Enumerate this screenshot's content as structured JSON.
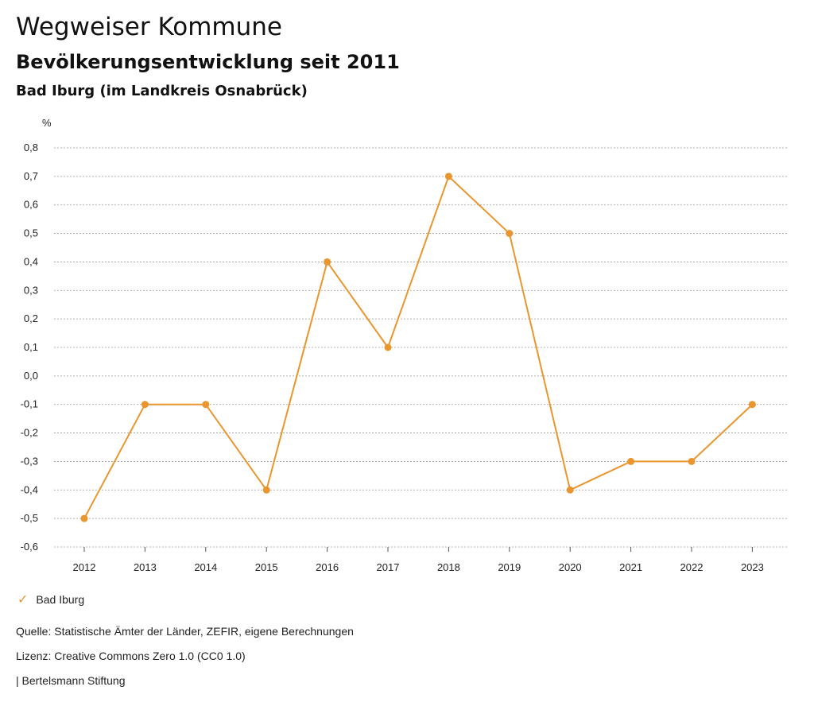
{
  "header": {
    "title": "Wegweiser Kommune",
    "subtitle": "Bevölkerungsentwicklung seit 2011",
    "region": "Bad Iburg (im Landkreis Osnabrück)"
  },
  "chart_data": {
    "type": "line",
    "unit_label": "%",
    "x": [
      "2012",
      "2013",
      "2014",
      "2015",
      "2016",
      "2017",
      "2018",
      "2019",
      "2020",
      "2021",
      "2022",
      "2023"
    ],
    "series": [
      {
        "name": "Bad Iburg",
        "color": "#e8962d",
        "values": [
          -0.5,
          -0.1,
          -0.1,
          -0.4,
          0.4,
          0.1,
          0.7,
          0.5,
          -0.4,
          -0.3,
          -0.3,
          -0.1
        ]
      }
    ],
    "ylim": [
      -0.6,
      0.8
    ],
    "yticks": [
      "0,8",
      "0,7",
      "0,6",
      "0,5",
      "0,4",
      "0,3",
      "0,2",
      "0,1",
      "0,0",
      "-0,1",
      "-0,2",
      "-0,3",
      "-0,4",
      "-0,5",
      "-0,6"
    ],
    "grid": true,
    "legend_position": "bottom-left"
  },
  "legend": {
    "label": "Bad Iburg"
  },
  "footer": {
    "source": "Quelle: Statistische Ämter der Länder, ZEFIR, eigene Berechnungen",
    "license": "Lizenz: Creative Commons Zero 1.0 (CC0 1.0)",
    "publisher": "| Bertelsmann Stiftung"
  }
}
